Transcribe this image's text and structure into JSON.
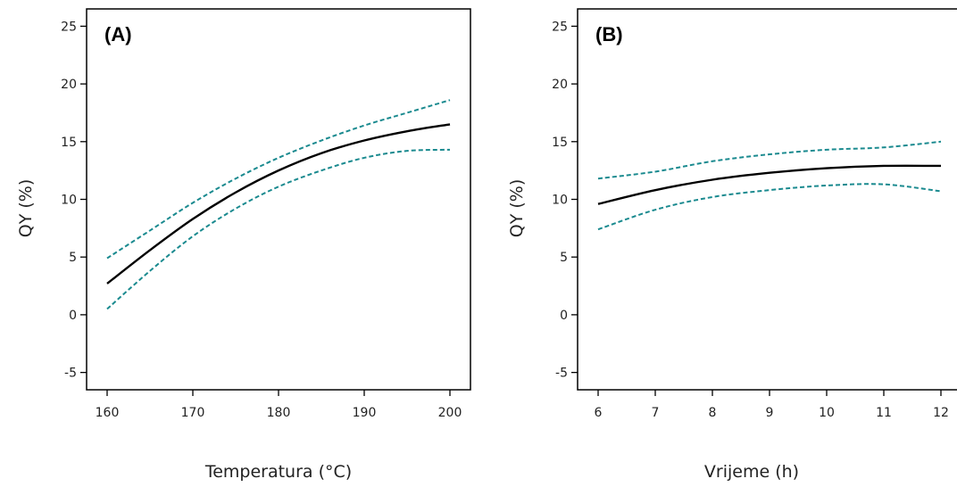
{
  "chart_data": [
    {
      "type": "line",
      "panel_label": "(A)",
      "xlabel": "Temperatura (°C)",
      "ylabel": "QY (%)",
      "xlim": [
        160,
        200
      ],
      "ylim": [
        -6.5,
        26.5
      ],
      "xticks": [
        160,
        170,
        180,
        190,
        200
      ],
      "yticks": [
        -5,
        0,
        5,
        10,
        15,
        20,
        25
      ],
      "grid": false,
      "x": [
        160,
        165,
        170,
        175,
        180,
        185,
        190,
        195,
        200
      ],
      "series": [
        {
          "role": "fit",
          "color": "#000000",
          "dashed": false,
          "values": [
            2.7,
            5.6,
            8.3,
            10.6,
            12.5,
            14.0,
            15.1,
            15.9,
            16.5
          ]
        },
        {
          "role": "upper",
          "color": "#1a8a8f",
          "dashed": true,
          "values": [
            4.9,
            7.3,
            9.7,
            11.8,
            13.6,
            15.1,
            16.4,
            17.5,
            18.6
          ]
        },
        {
          "role": "lower",
          "color": "#1a8a8f",
          "dashed": true,
          "values": [
            0.5,
            3.8,
            6.8,
            9.2,
            11.1,
            12.5,
            13.6,
            14.2,
            14.3
          ]
        }
      ]
    },
    {
      "type": "line",
      "panel_label": "(B)",
      "xlabel": "Vrijeme (h)",
      "ylabel": "QY (%)",
      "xlim": [
        6,
        12
      ],
      "ylim": [
        -6.5,
        26.5
      ],
      "xticks": [
        6,
        7,
        8,
        9,
        10,
        11,
        12
      ],
      "yticks": [
        -5,
        0,
        5,
        10,
        15,
        20,
        25
      ],
      "grid": false,
      "x": [
        6,
        7,
        8,
        9,
        10,
        11,
        12
      ],
      "series": [
        {
          "role": "fit",
          "color": "#000000",
          "dashed": false,
          "values": [
            9.6,
            10.8,
            11.7,
            12.3,
            12.7,
            12.9,
            12.9
          ]
        },
        {
          "role": "upper",
          "color": "#1a8a8f",
          "dashed": true,
          "values": [
            11.8,
            12.4,
            13.3,
            13.9,
            14.3,
            14.5,
            15.0
          ]
        },
        {
          "role": "lower",
          "color": "#1a8a8f",
          "dashed": true,
          "values": [
            7.4,
            9.1,
            10.2,
            10.8,
            11.2,
            11.3,
            10.7
          ]
        }
      ]
    }
  ]
}
